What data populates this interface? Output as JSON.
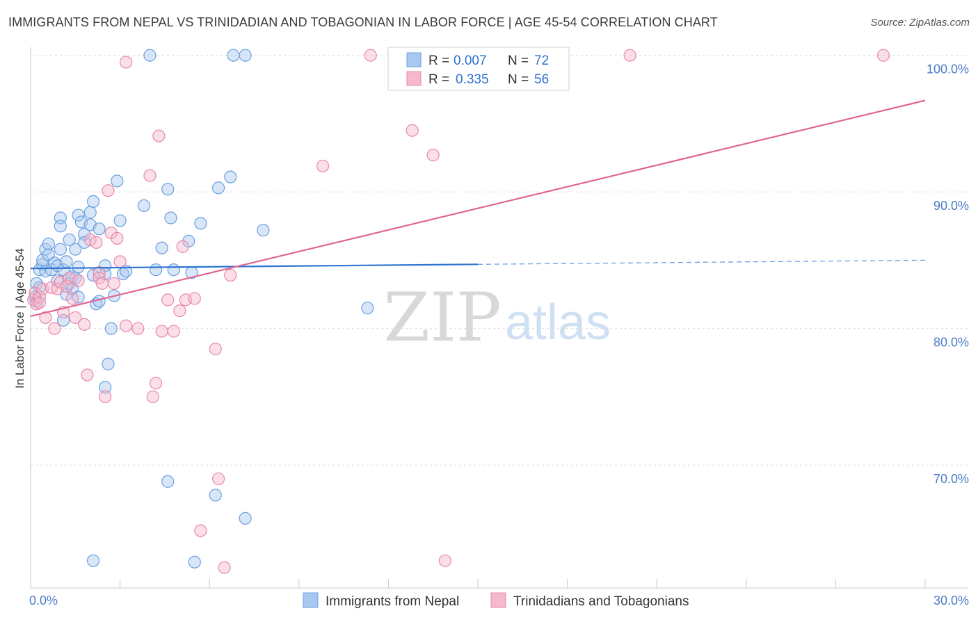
{
  "chart_data": {
    "type": "scatter",
    "title": "IMMIGRANTS FROM NEPAL VS TRINIDADIAN AND TOBAGONIAN IN LABOR FORCE | AGE 45-54 CORRELATION CHART",
    "source": "Source: ZipAtlas.com",
    "ylabel": "In Labor Force | Age 45-54",
    "xlim": [
      0,
      30
    ],
    "ylim": [
      61,
      101
    ],
    "y_ticks": [
      {
        "value": 70,
        "label": "70.0%"
      },
      {
        "value": 80,
        "label": "80.0%"
      },
      {
        "value": 90,
        "label": "90.0%"
      },
      {
        "value": 100,
        "label": "100.0%"
      }
    ],
    "x_tick_labels": {
      "min": "0.0%",
      "max": "30.0%"
    },
    "watermark": {
      "zip": "ZIP",
      "atlas": "atlas"
    },
    "legend": {
      "r_label": "R =",
      "n_label": "N =",
      "entries": [
        {
          "r": "0.007",
          "n": "72"
        },
        {
          "r": "0.335",
          "n": "56"
        }
      ]
    },
    "series": [
      {
        "name": "Immigrants from Nepal",
        "color": "#6a9fe0",
        "fill": "#a8c8f0",
        "trend": {
          "x0": 0.0,
          "y0": 84.4,
          "x1": 15.0,
          "y1": 84.7,
          "dash_x1": 30.0,
          "dash_y1": 85.0
        },
        "points": [
          [
            0.2,
            83.3
          ],
          [
            0.2,
            82.0
          ],
          [
            0.3,
            84.3
          ],
          [
            0.4,
            84.7
          ],
          [
            0.4,
            85.0
          ],
          [
            0.5,
            84.2
          ],
          [
            0.5,
            85.8
          ],
          [
            0.6,
            86.2
          ],
          [
            0.6,
            85.4
          ],
          [
            0.7,
            84.3
          ],
          [
            0.8,
            84.8
          ],
          [
            0.9,
            84.6
          ],
          [
            1.0,
            88.1
          ],
          [
            1.0,
            87.5
          ],
          [
            1.0,
            85.8
          ],
          [
            1.1,
            84.3
          ],
          [
            1.1,
            80.6
          ],
          [
            1.2,
            82.5
          ],
          [
            1.3,
            83.3
          ],
          [
            1.4,
            83.8
          ],
          [
            1.4,
            82.9
          ],
          [
            1.5,
            85.8
          ],
          [
            1.5,
            83.7
          ],
          [
            1.6,
            88.3
          ],
          [
            1.6,
            84.5
          ],
          [
            1.6,
            82.3
          ],
          [
            1.7,
            87.8
          ],
          [
            1.8,
            86.9
          ],
          [
            1.8,
            86.3
          ],
          [
            2.0,
            87.6
          ],
          [
            2.0,
            88.5
          ],
          [
            2.1,
            89.3
          ],
          [
            2.2,
            81.8
          ],
          [
            2.3,
            87.3
          ],
          [
            2.3,
            82.0
          ],
          [
            2.5,
            84.6
          ],
          [
            2.5,
            84.0
          ],
          [
            2.7,
            80.0
          ],
          [
            2.8,
            82.4
          ],
          [
            2.9,
            90.8
          ],
          [
            3.0,
            87.9
          ],
          [
            3.1,
            84.0
          ],
          [
            3.8,
            89.0
          ],
          [
            4.0,
            100.0
          ],
          [
            4.2,
            84.3
          ],
          [
            4.4,
            85.9
          ],
          [
            4.6,
            90.2
          ],
          [
            4.7,
            88.1
          ],
          [
            4.8,
            84.3
          ],
          [
            5.3,
            86.4
          ],
          [
            5.4,
            84.1
          ],
          [
            5.7,
            87.7
          ],
          [
            6.3,
            90.3
          ],
          [
            6.7,
            91.1
          ],
          [
            6.8,
            100.0
          ],
          [
            7.2,
            100.0
          ],
          [
            7.8,
            87.2
          ],
          [
            11.3,
            81.5
          ],
          [
            2.6,
            77.4
          ],
          [
            2.5,
            75.7
          ],
          [
            4.6,
            68.8
          ],
          [
            6.2,
            67.8
          ],
          [
            7.2,
            66.1
          ],
          [
            2.1,
            63.0
          ],
          [
            5.5,
            62.9
          ],
          [
            0.15,
            82.3
          ],
          [
            0.9,
            83.5
          ],
          [
            1.2,
            84.9
          ],
          [
            2.1,
            83.9
          ],
          [
            3.2,
            84.2
          ],
          [
            0.3,
            83.0
          ],
          [
            1.3,
            86.5
          ]
        ]
      },
      {
        "name": "Trinidadians and Tobagonians",
        "color": "#e888a8",
        "fill": "#f5b8cc",
        "trend": {
          "x0": 0.0,
          "y0": 80.9,
          "x1": 30.0,
          "y1": 96.7
        },
        "points": [
          [
            0.1,
            82.1
          ],
          [
            0.15,
            82.6
          ],
          [
            0.2,
            81.8
          ],
          [
            0.3,
            82.3
          ],
          [
            0.3,
            81.9
          ],
          [
            0.4,
            82.9
          ],
          [
            0.5,
            80.8
          ],
          [
            0.7,
            83.0
          ],
          [
            0.8,
            80.0
          ],
          [
            0.9,
            82.9
          ],
          [
            1.0,
            83.4
          ],
          [
            1.2,
            83.1
          ],
          [
            1.3,
            83.7
          ],
          [
            1.4,
            82.2
          ],
          [
            1.5,
            80.8
          ],
          [
            1.6,
            83.5
          ],
          [
            1.8,
            80.3
          ],
          [
            1.9,
            76.6
          ],
          [
            2.0,
            86.5
          ],
          [
            2.2,
            86.3
          ],
          [
            2.3,
            84.1
          ],
          [
            2.3,
            83.7
          ],
          [
            2.4,
            83.3
          ],
          [
            2.5,
            75.0
          ],
          [
            2.6,
            90.1
          ],
          [
            2.7,
            87.0
          ],
          [
            2.8,
            83.3
          ],
          [
            2.9,
            86.6
          ],
          [
            3.0,
            84.9
          ],
          [
            3.2,
            80.2
          ],
          [
            3.6,
            80.0
          ],
          [
            4.0,
            91.2
          ],
          [
            4.1,
            75.0
          ],
          [
            4.2,
            76.0
          ],
          [
            4.3,
            94.1
          ],
          [
            4.4,
            79.8
          ],
          [
            4.6,
            82.1
          ],
          [
            4.8,
            79.8
          ],
          [
            5.0,
            81.3
          ],
          [
            5.1,
            86.0
          ],
          [
            5.2,
            82.1
          ],
          [
            5.5,
            82.2
          ],
          [
            5.7,
            65.2
          ],
          [
            6.2,
            78.5
          ],
          [
            6.3,
            69.0
          ],
          [
            6.5,
            62.5
          ],
          [
            6.7,
            83.9
          ],
          [
            9.8,
            91.9
          ],
          [
            11.4,
            100.0
          ],
          [
            12.8,
            94.5
          ],
          [
            13.5,
            92.7
          ],
          [
            13.9,
            63.0
          ],
          [
            20.1,
            100.0
          ],
          [
            28.6,
            100.0
          ],
          [
            3.2,
            99.5
          ],
          [
            1.1,
            81.2
          ]
        ]
      }
    ]
  }
}
